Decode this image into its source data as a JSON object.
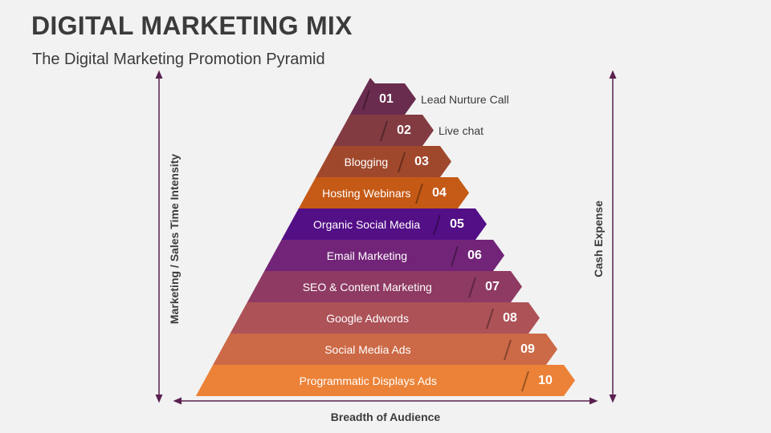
{
  "title": "DIGITAL MARKETING MIX",
  "subtitle": "The Digital Marketing Promotion Pyramid",
  "axes": {
    "left": "Marketing / Sales Time Intensity",
    "right": "Cash Expense",
    "bottom": "Breadth of Audience"
  },
  "axis_color": "#5b2150",
  "levels": [
    {
      "num": "01",
      "label": "Lead Nurture Call",
      "color": "#6a2c4e",
      "outside": true
    },
    {
      "num": "02",
      "label": "Live chat",
      "color": "#833b42",
      "outside": true
    },
    {
      "num": "03",
      "label": "Blogging",
      "color": "#a0482c",
      "outside": false
    },
    {
      "num": "04",
      "label": "Hosting Webinars",
      "color": "#c55a16",
      "outside": false
    },
    {
      "num": "05",
      "label": "Organic Social Media",
      "color": "#530f86",
      "outside": false
    },
    {
      "num": "06",
      "label": "Email Marketing",
      "color": "#722478",
      "outside": false
    },
    {
      "num": "07",
      "label": "SEO & Content Marketing",
      "color": "#8e3a62",
      "outside": false
    },
    {
      "num": "08",
      "label": "Google Adwords",
      "color": "#ad5257",
      "outside": false
    },
    {
      "num": "09",
      "label": "Social Media Ads",
      "color": "#cc6946",
      "outside": false
    },
    {
      "num": "10",
      "label": "Programmatic Displays Ads",
      "color": "#ec8237",
      "outside": false
    }
  ]
}
